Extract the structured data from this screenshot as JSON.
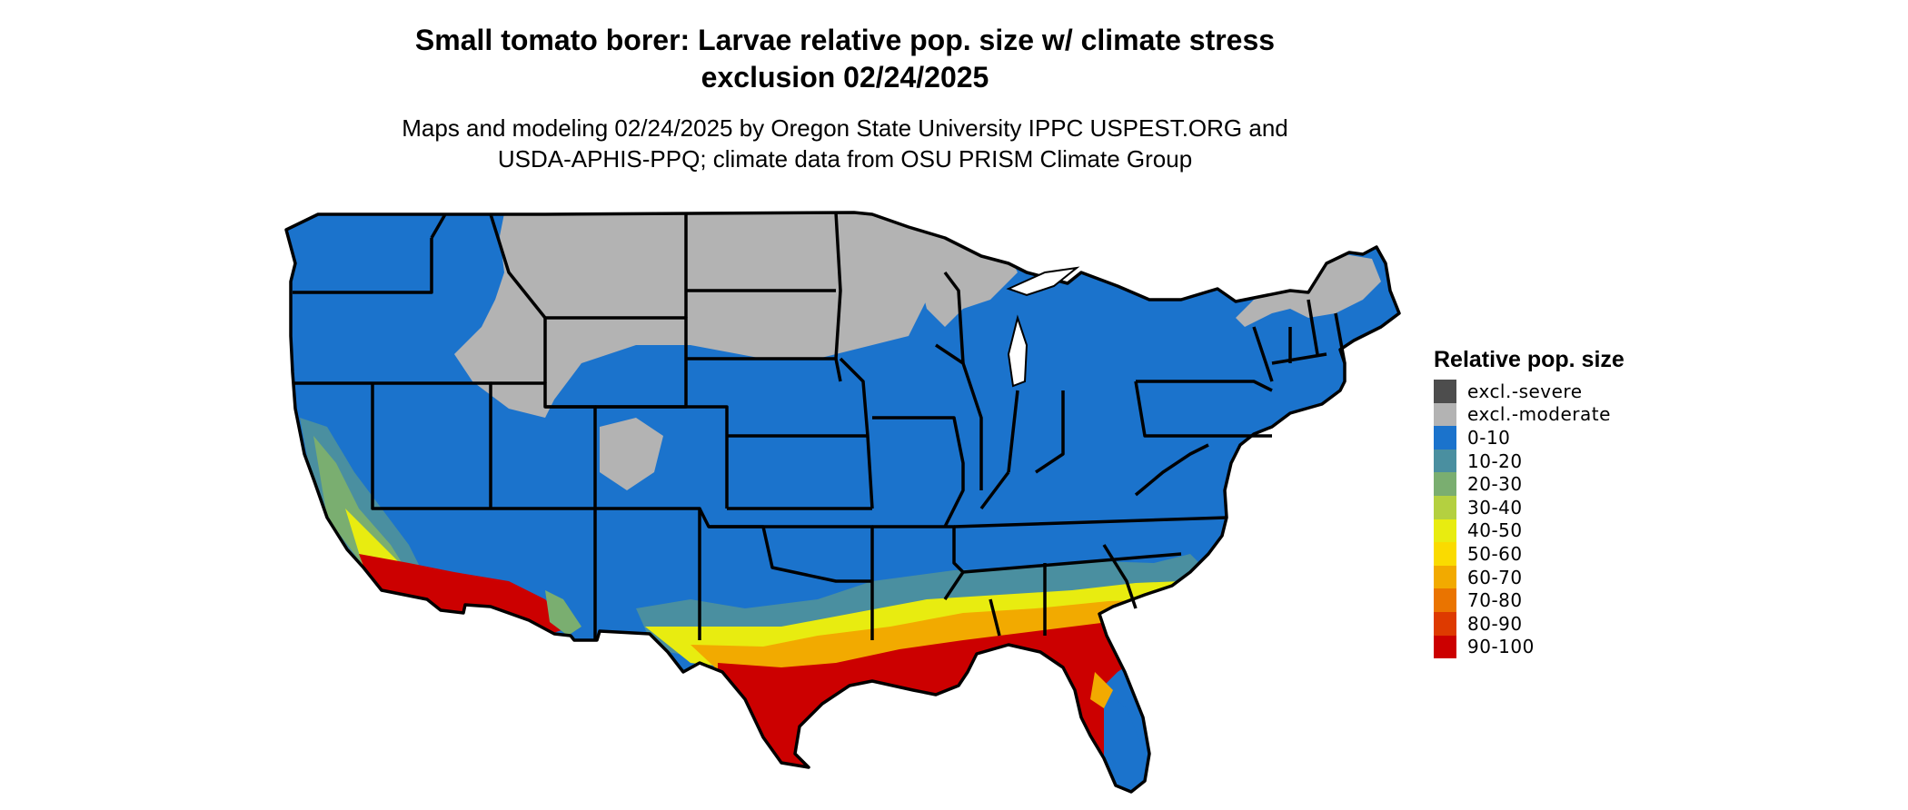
{
  "title_line1": "Small tomato borer: Larvae relative pop. size w/ climate stress",
  "title_line2": "exclusion 02/24/2025",
  "subtitle_line1": "Maps and modeling 02/24/2025 by Oregon State University IPPC USPEST.ORG and",
  "subtitle_line2": "USDA-APHIS-PPQ; climate data from OSU PRISM Climate Group",
  "legend": {
    "title": "Relative pop. size",
    "items": [
      {
        "label": "excl.-severe",
        "color": "#4d4d4d"
      },
      {
        "label": "excl.-moderate",
        "color": "#b3b3b3"
      },
      {
        "label": "0-10",
        "color": "#1b73cc"
      },
      {
        "label": "10-20",
        "color": "#4a8fa0"
      },
      {
        "label": "20-30",
        "color": "#7aae70"
      },
      {
        "label": "30-40",
        "color": "#b4d040"
      },
      {
        "label": "40-50",
        "color": "#e8ec10"
      },
      {
        "label": "50-60",
        "color": "#fadb00"
      },
      {
        "label": "60-70",
        "color": "#f2aa00"
      },
      {
        "label": "70-80",
        "color": "#ea7400"
      },
      {
        "label": "80-90",
        "color": "#de3a00"
      },
      {
        "label": "90-100",
        "color": "#cc0000"
      }
    ]
  }
}
